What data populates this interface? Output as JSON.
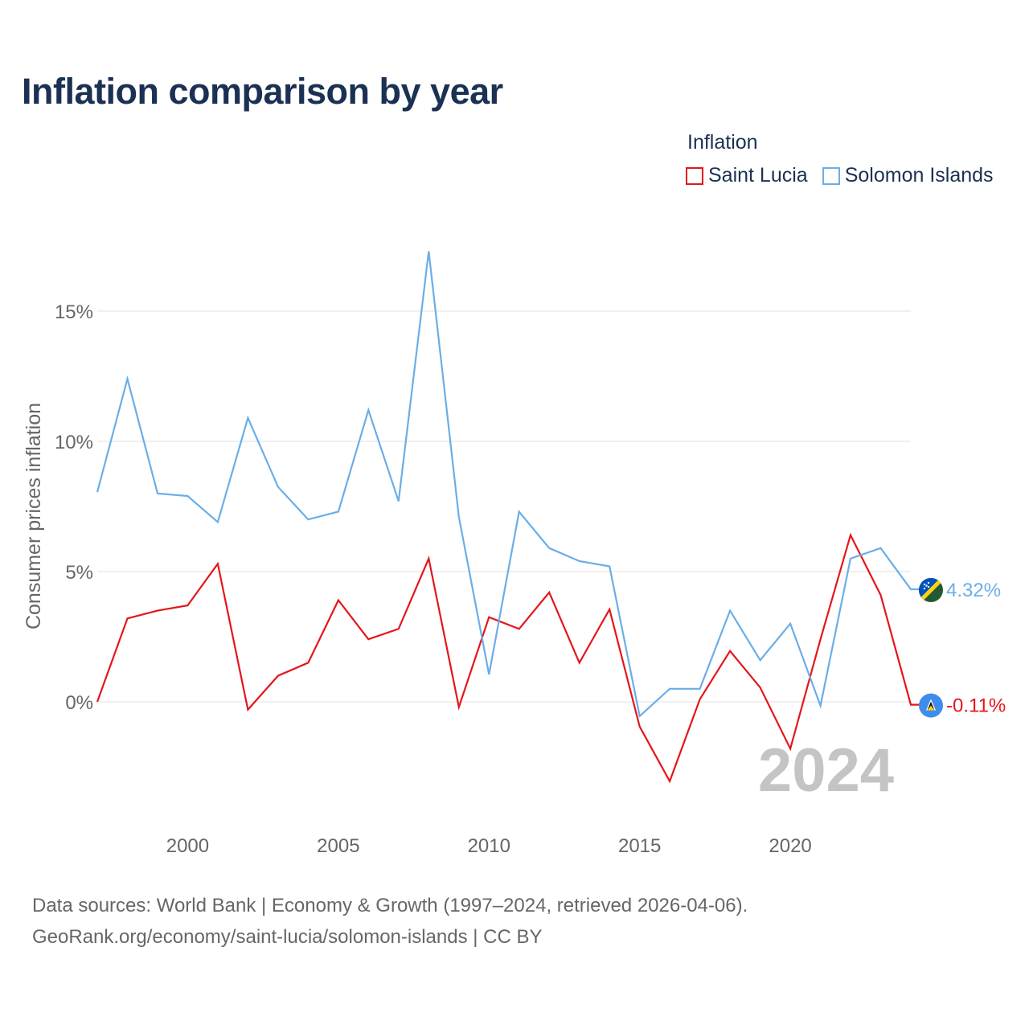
{
  "title": "Inflation comparison by year",
  "legend": {
    "title": "Inflation",
    "items": [
      {
        "label": "Saint Lucia",
        "color": "#e4161b"
      },
      {
        "label": "Solomon Islands",
        "color": "#6aaee7"
      }
    ]
  },
  "source": {
    "line1": "Data sources: World Bank | Economy & Growth (1997–2024, retrieved 2026-04-06).",
    "line2": "GeoRank.org/economy/saint-lucia/solomon-islands | CC BY"
  },
  "chart_data": {
    "type": "line",
    "title": "Inflation comparison by year",
    "xlabel": "",
    "ylabel": "Consumer prices inflation",
    "x": [
      1997,
      1998,
      1999,
      2000,
      2001,
      2002,
      2003,
      2004,
      2005,
      2006,
      2007,
      2008,
      2009,
      2010,
      2011,
      2012,
      2013,
      2014,
      2015,
      2016,
      2017,
      2018,
      2019,
      2020,
      2021,
      2022,
      2023,
      2024
    ],
    "xlim": [
      1997,
      2024
    ],
    "ylim": [
      -4.5,
      20
    ],
    "x_ticks": [
      {
        "value": 2000,
        "label": "2000"
      },
      {
        "value": 2005,
        "label": "2005"
      },
      {
        "value": 2010,
        "label": "2010"
      },
      {
        "value": 2015,
        "label": "2015"
      },
      {
        "value": 2020,
        "label": "2020"
      }
    ],
    "y_ticks": [
      {
        "value": 0,
        "label": "0%"
      },
      {
        "value": 5,
        "label": "5%"
      },
      {
        "value": 10,
        "label": "10%"
      },
      {
        "value": 15,
        "label": "15%"
      }
    ],
    "grid": true,
    "year_watermark": "2024",
    "series": [
      {
        "name": "Saint Lucia",
        "color": "#e4161b",
        "end_label": "-0.11%",
        "values": [
          0.0,
          3.2,
          3.5,
          3.7,
          5.3,
          -0.3,
          1.0,
          1.5,
          3.9,
          2.4,
          2.8,
          5.5,
          -0.2,
          3.25,
          2.8,
          4.2,
          1.5,
          3.55,
          -0.95,
          -3.05,
          0.1,
          1.95,
          0.55,
          -1.8,
          2.4,
          6.4,
          4.1,
          -0.11
        ]
      },
      {
        "name": "Solomon Islands",
        "color": "#6aaee7",
        "end_label": "4.32%",
        "values": [
          8.05,
          12.4,
          8.0,
          7.9,
          6.9,
          10.9,
          8.25,
          7.0,
          7.3,
          11.2,
          7.7,
          17.3,
          7.1,
          1.05,
          7.3,
          5.9,
          5.4,
          5.2,
          -0.55,
          0.5,
          0.5,
          3.5,
          1.6,
          3.0,
          -0.15,
          5.5,
          5.9,
          4.32
        ]
      }
    ]
  }
}
